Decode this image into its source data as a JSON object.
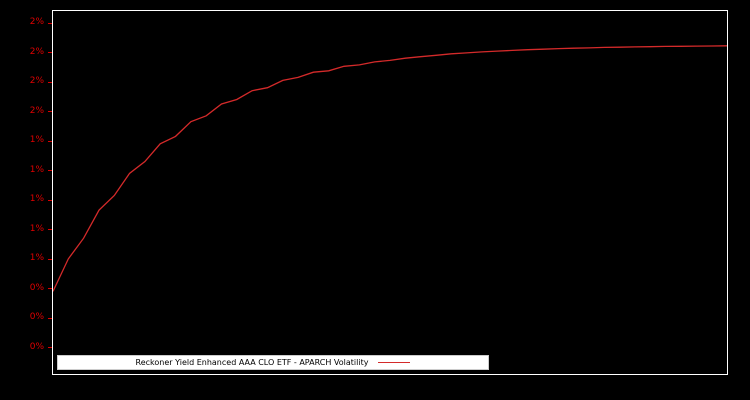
{
  "figure": {
    "background": "#000000",
    "frame_color": "#ffffff"
  },
  "axis": {
    "tick_color": "#dd0000",
    "y_tick_labels": [
      "2%",
      "2%",
      "2%",
      "2%",
      "1%",
      "1%",
      "1%",
      "1%",
      "1%",
      "0%",
      "0%",
      "0%"
    ],
    "y_tick_values": [
      2.2,
      2.0,
      1.8,
      1.6,
      1.4,
      1.2,
      1.0,
      0.8,
      0.6,
      0.4,
      0.2,
      0.0
    ]
  },
  "legend": {
    "label": "Reckoner Yield Enhanced AAA CLO ETF - APARCH Volatility",
    "line_color": "#d42a2a",
    "background": "#ffffff",
    "text_color": "#000000"
  },
  "chart_data": {
    "type": "line",
    "title": "",
    "xlabel": "",
    "ylabel": "",
    "grid": false,
    "background": "#000000",
    "legend_position": "lower-left",
    "xlim": [
      0,
      308
    ],
    "ylim": [
      -0.18,
      2.28
    ],
    "yticks": {
      "values": [
        2.2,
        2.0,
        1.8,
        1.6,
        1.4,
        1.2,
        1.0,
        0.8,
        0.6,
        0.4,
        0.2,
        0.0
      ],
      "labels": [
        "2%",
        "2%",
        "2%",
        "2%",
        "1%",
        "1%",
        "1%",
        "1%",
        "1%",
        "0%",
        "0%",
        "0%"
      ]
    },
    "series": [
      {
        "name": "Reckoner Yield Enhanced AAA CLO ETF - APARCH Volatility",
        "color": "#d42a2a",
        "unit": "percent",
        "x": [
          0,
          7,
          14,
          21,
          28,
          35,
          42,
          49,
          56,
          63,
          70,
          77,
          84,
          91,
          98,
          105,
          112,
          119,
          126,
          133,
          140,
          147,
          154,
          161,
          168,
          175,
          182,
          189,
          196,
          203,
          210,
          217,
          224,
          231,
          238,
          245,
          252,
          259,
          266,
          273,
          280,
          287,
          294,
          301,
          308
        ],
        "y": [
          0.38,
          0.6,
          0.74,
          0.93,
          1.03,
          1.18,
          1.26,
          1.38,
          1.43,
          1.53,
          1.57,
          1.65,
          1.68,
          1.74,
          1.76,
          1.81,
          1.83,
          1.865,
          1.875,
          1.905,
          1.915,
          1.935,
          1.945,
          1.96,
          1.97,
          1.98,
          1.99,
          1.996,
          2.003,
          2.008,
          2.013,
          2.018,
          2.021,
          2.025,
          2.028,
          2.03,
          2.033,
          2.035,
          2.037,
          2.038,
          2.04,
          2.041,
          2.042,
          2.043,
          2.044
        ]
      }
    ]
  }
}
